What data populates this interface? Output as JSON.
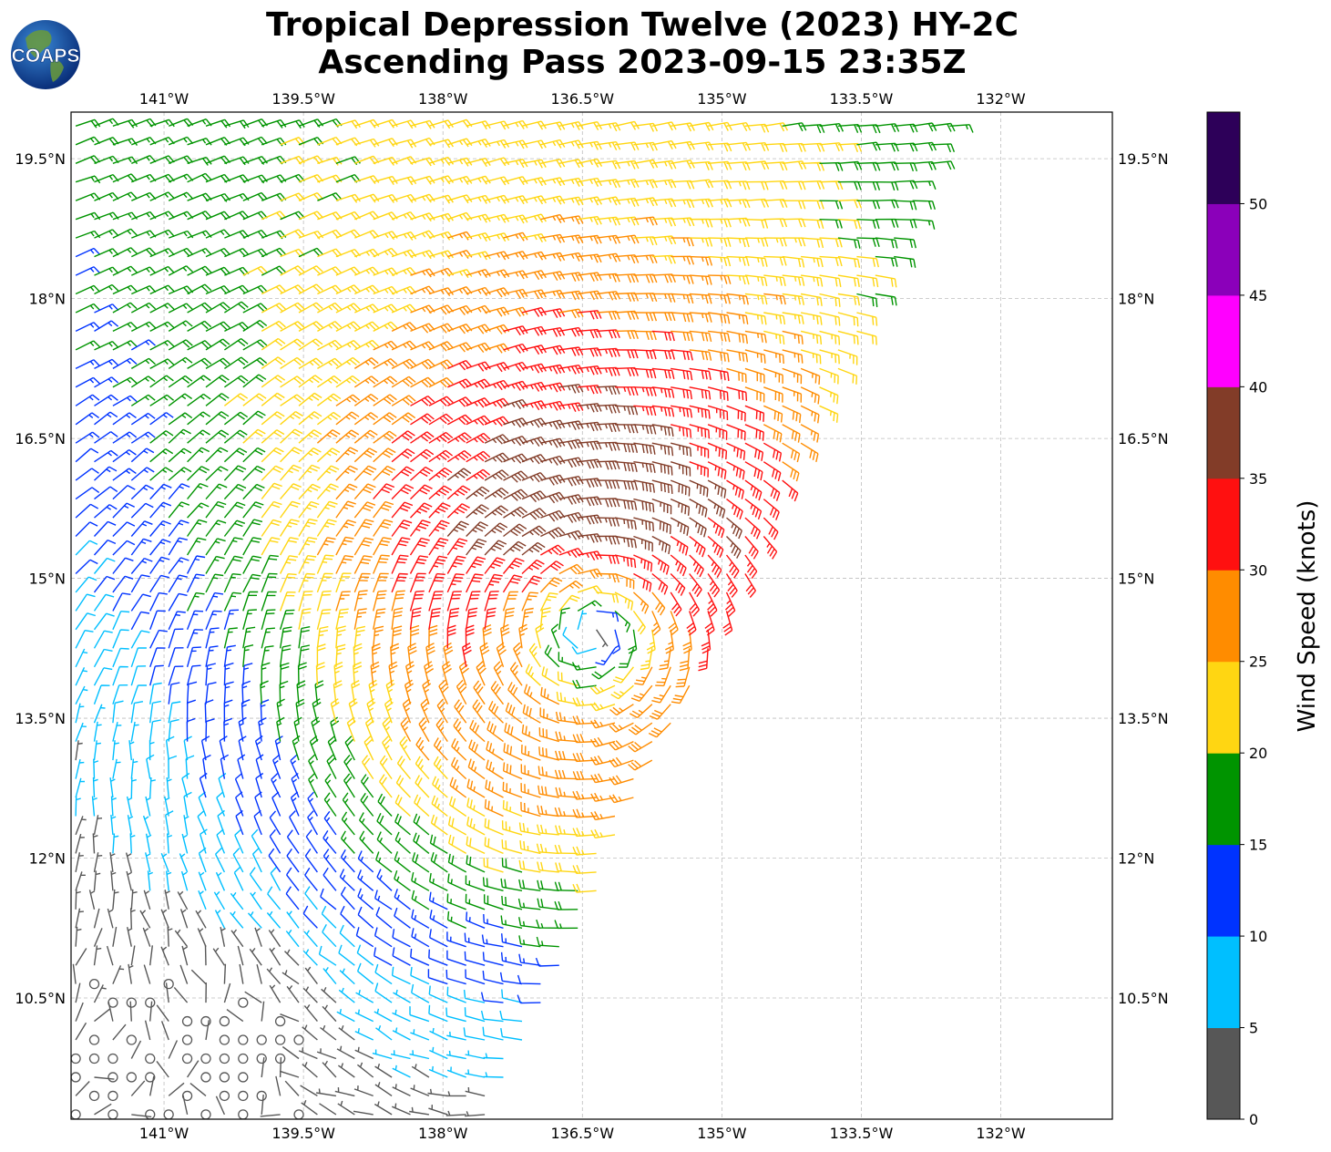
{
  "header": {
    "title_line1": "Tropical Depression Twelve (2023) HY-2C",
    "title_line2": "Ascending Pass 2023-09-15 23:35Z",
    "logo_text": "COAPS"
  },
  "map": {
    "lon_range": [
      -142.0,
      -130.8
    ],
    "lat_range": [
      9.2,
      20.0
    ],
    "lon_ticks": [
      {
        "value": -141.0,
        "label": "141°W"
      },
      {
        "value": -139.5,
        "label": "139.5°W"
      },
      {
        "value": -138.0,
        "label": "138°W"
      },
      {
        "value": -136.5,
        "label": "136.5°W"
      },
      {
        "value": -135.0,
        "label": "135°W"
      },
      {
        "value": -133.5,
        "label": "133.5°W"
      },
      {
        "value": -132.0,
        "label": "132°W"
      }
    ],
    "lat_ticks": [
      {
        "value": 19.5,
        "label": "19.5°N"
      },
      {
        "value": 18.0,
        "label": "18°N"
      },
      {
        "value": 16.5,
        "label": "16.5°N"
      },
      {
        "value": 15.0,
        "label": "15°N"
      },
      {
        "value": 13.5,
        "label": "13.5°N"
      },
      {
        "value": 12.0,
        "label": "12°N"
      },
      {
        "value": 10.5,
        "label": "10.5°N"
      }
    ],
    "swath": {
      "corners": [
        [
          -142.0,
          9.2
        ],
        [
          -137.5,
          9.2
        ],
        [
          -132.4,
          20.0
        ],
        [
          -142.0,
          20.0
        ]
      ]
    },
    "storm_center": {
      "lon": -136.4,
      "lat": 14.5
    },
    "grid": "on",
    "barb_spacing_deg": 0.2
  },
  "colorbar": {
    "label": "Wind Speed (knots)",
    "bins": [
      {
        "min": 0,
        "max": 5,
        "color": "#575757"
      },
      {
        "min": 5,
        "max": 10,
        "color": "#00bfff"
      },
      {
        "min": 10,
        "max": 15,
        "color": "#0033ff"
      },
      {
        "min": 15,
        "max": 20,
        "color": "#009400"
      },
      {
        "min": 20,
        "max": 25,
        "color": "#ffd612"
      },
      {
        "min": 25,
        "max": 30,
        "color": "#ff8c00"
      },
      {
        "min": 30,
        "max": 35,
        "color": "#ff1010"
      },
      {
        "min": 35,
        "max": 40,
        "color": "#823c28"
      },
      {
        "min": 40,
        "max": 45,
        "color": "#ff00ff"
      },
      {
        "min": 45,
        "max": 50,
        "color": "#8b00ba"
      },
      {
        "min": 50,
        "max": 55,
        "color": "#2d0059"
      }
    ],
    "tick_values": [
      0,
      5,
      10,
      15,
      20,
      25,
      30,
      35,
      40,
      45,
      50
    ]
  }
}
